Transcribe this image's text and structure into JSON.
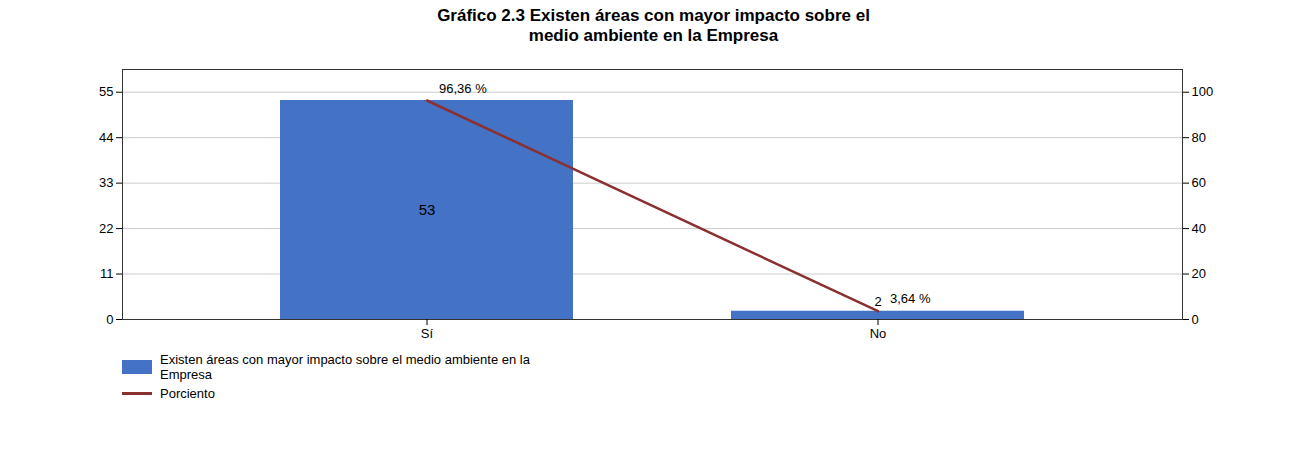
{
  "chart_data": {
    "type": "bar",
    "title": "Gráfico 2.3 Existen áreas con mayor impacto sobre el\nmedio ambiente en la Empresa",
    "categories": [
      "Sí",
      "No"
    ],
    "series": [
      {
        "name": "Existen áreas con mayor impacto sobre el medio ambiente en la\nEmpresa",
        "type": "bar",
        "color": "#4472C4",
        "values": [
          53,
          2
        ]
      },
      {
        "name": "Porciento",
        "type": "line",
        "axis": "y2",
        "color": "#8B3030",
        "values": [
          96.36,
          3.64
        ],
        "value_labels": [
          "96,36 %",
          "3,64 %"
        ]
      }
    ],
    "ylim": [
      0,
      60.5
    ],
    "yticks": [
      0,
      11,
      22,
      33,
      44,
      55
    ],
    "y2lim": [
      0,
      110
    ],
    "y2ticks": [
      0,
      20,
      40,
      60,
      80,
      100
    ],
    "grid": true,
    "legend": "lower left",
    "data_labels": true
  }
}
